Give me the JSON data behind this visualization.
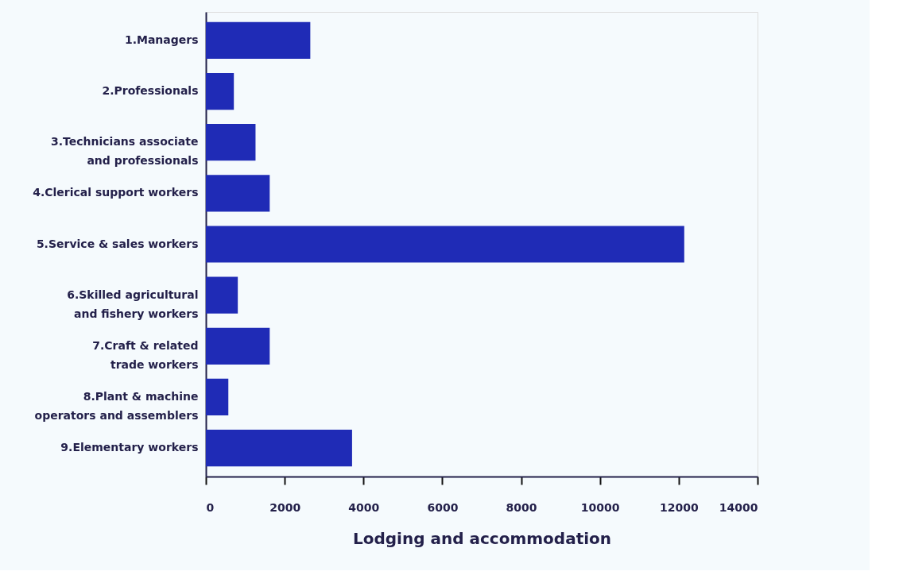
{
  "chart_data": {
    "type": "bar",
    "orientation": "horizontal",
    "xlabel": "Lodging and accommodation",
    "categories": [
      "1.Managers",
      "2.Professionals",
      "3.Technicians associate\nand professionals",
      "4.Clerical support workers",
      "5.Service & sales workers",
      "6.Skilled agricultural\nand fishery workers",
      "7.Craft & related\ntrade workers",
      "8.Plant & machine\noperators and assemblers",
      "9.Elementary workers"
    ],
    "values": [
      2650,
      710,
      1260,
      1620,
      12140,
      810,
      1620,
      570,
      3710
    ],
    "color": "#1f2bb6",
    "xlim": [
      0,
      14000
    ],
    "xticks": [
      0,
      2000,
      4000,
      6000,
      8000,
      10000,
      12000,
      14000
    ],
    "grid": false
  }
}
